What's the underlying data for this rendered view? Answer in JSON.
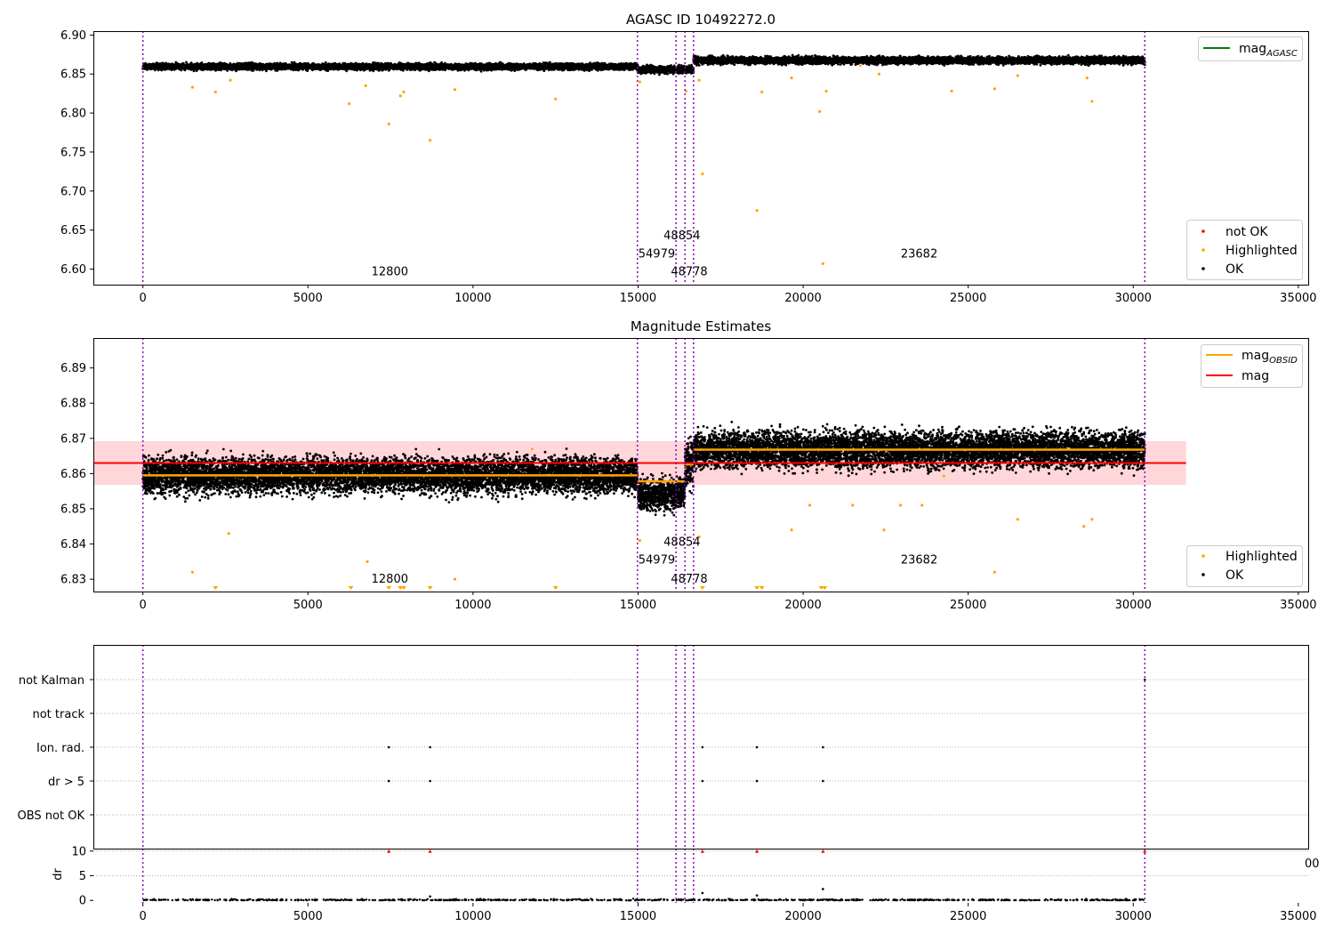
{
  "chart_data": [
    {
      "type": "scatter",
      "title": "AGASC ID 10492272.0",
      "xlabel": "",
      "ylabel": "",
      "xlim": [
        -1500,
        35300
      ],
      "ylim": [
        6.58,
        6.905
      ],
      "xticks": [
        0,
        5000,
        10000,
        15000,
        20000,
        25000,
        30000,
        35000
      ],
      "yticks": [
        6.6,
        6.65,
        6.7,
        6.75,
        6.8,
        6.85,
        6.9
      ],
      "ytick_labels": [
        "6.60",
        "6.65",
        "6.70",
        "6.75",
        "6.80",
        "6.85",
        "6.90"
      ],
      "obsid_boundaries": [
        0,
        14980,
        16150,
        16420,
        16680,
        30350
      ],
      "obsid_labels": [
        {
          "text": "12800",
          "x": 7480,
          "y": 6.592
        },
        {
          "text": "54979",
          "x": 15565,
          "y": 6.615
        },
        {
          "text": "48854",
          "x": 16330,
          "y": 6.638
        },
        {
          "text": "48778",
          "x": 16550,
          "y": 6.592
        },
        {
          "text": "23682",
          "x": 23515,
          "y": 6.615
        }
      ],
      "segments": [
        {
          "x0": 0,
          "x1": 14980,
          "center": 6.8595,
          "spread": 0.0035
        },
        {
          "x0": 14980,
          "x1": 16680,
          "center": 6.8555,
          "spread": 0.004
        },
        {
          "x0": 16680,
          "x1": 30350,
          "center": 6.8675,
          "spread": 0.004
        }
      ],
      "highlighted_outliers": [
        [
          1500,
          6.833
        ],
        [
          2200,
          6.827
        ],
        [
          2650,
          6.842
        ],
        [
          6250,
          6.812
        ],
        [
          6750,
          6.835
        ],
        [
          7450,
          6.786
        ],
        [
          7800,
          6.822
        ],
        [
          7900,
          6.827
        ],
        [
          8700,
          6.765
        ],
        [
          9450,
          6.83
        ],
        [
          12500,
          6.818
        ],
        [
          15050,
          6.84
        ],
        [
          16450,
          6.828
        ],
        [
          16850,
          6.842
        ],
        [
          16950,
          6.722
        ],
        [
          18600,
          6.675
        ],
        [
          18750,
          6.827
        ],
        [
          19650,
          6.845
        ],
        [
          20500,
          6.802
        ],
        [
          20600,
          6.607
        ],
        [
          20700,
          6.828
        ],
        [
          22300,
          6.85
        ],
        [
          24500,
          6.828
        ],
        [
          25800,
          6.831
        ],
        [
          26500,
          6.848
        ],
        [
          28600,
          6.845
        ],
        [
          28750,
          6.815
        ]
      ],
      "legend_lines": [
        {
          "label": "mag",
          "sub": "AGASC",
          "color": "#008000"
        }
      ],
      "legend_markers": [
        {
          "label": "not OK",
          "color": "#ff0000"
        },
        {
          "label": "Highlighted",
          "color": "#ffa500"
        },
        {
          "label": "OK",
          "color": "#000000"
        }
      ]
    },
    {
      "type": "scatter",
      "title": "Magnitude Estimates",
      "xlabel": "",
      "ylabel": "",
      "xlim": [
        -1500,
        35300
      ],
      "ylim": [
        6.8265,
        6.8985
      ],
      "xticks": [
        0,
        5000,
        10000,
        15000,
        20000,
        25000,
        30000,
        35000
      ],
      "yticks": [
        6.83,
        6.84,
        6.85,
        6.86,
        6.87,
        6.88,
        6.89
      ],
      "ytick_labels": [
        "6.83",
        "6.84",
        "6.85",
        "6.86",
        "6.87",
        "6.88",
        "6.89"
      ],
      "mean_mag": 6.863,
      "mean_band": [
        6.8568,
        6.8692
      ],
      "mean_x_range": [
        -1500,
        31600
      ],
      "obsid_mean": [
        {
          "x0": 0,
          "x1": 14980,
          "mag": 6.8595
        },
        {
          "x0": 14980,
          "x1": 16420,
          "mag": 6.8578
        },
        {
          "x0": 16420,
          "x1": 16680,
          "mag": 6.8626
        },
        {
          "x0": 16680,
          "x1": 30350,
          "mag": 6.8668
        }
      ],
      "segments": [
        {
          "x0": 0,
          "x1": 14980,
          "center": 6.8595,
          "spread": 0.0045
        },
        {
          "x0": 14980,
          "x1": 16420,
          "center": 6.854,
          "spread": 0.004
        },
        {
          "x0": 16420,
          "x1": 16680,
          "center": 6.8625,
          "spread": 0.006
        },
        {
          "x0": 16680,
          "x1": 30350,
          "center": 6.8668,
          "spread": 0.0045
        }
      ],
      "highlighted_outliers": [
        [
          1500,
          6.832
        ],
        [
          2600,
          6.843
        ],
        [
          6800,
          6.835
        ],
        [
          9450,
          6.83
        ],
        [
          15050,
          6.841
        ],
        [
          16850,
          6.842
        ],
        [
          19650,
          6.844
        ],
        [
          20200,
          6.851
        ],
        [
          21500,
          6.851
        ],
        [
          22450,
          6.844
        ],
        [
          22950,
          6.851
        ],
        [
          23600,
          6.851
        ],
        [
          25800,
          6.832
        ],
        [
          26500,
          6.847
        ],
        [
          28500,
          6.845
        ],
        [
          28750,
          6.847
        ]
      ],
      "below_axis_markers": [
        2200,
        6300,
        7450,
        7800,
        7900,
        8700,
        12500,
        16950,
        18600,
        18750,
        20550,
        20650
      ],
      "obsid_labels": [
        {
          "text": "12800",
          "x": 7480,
          "y": 6.829
        },
        {
          "text": "54979",
          "x": 15565,
          "y": 6.8345
        },
        {
          "text": "48854",
          "x": 16330,
          "y": 6.8395
        },
        {
          "text": "48778",
          "x": 16550,
          "y": 6.829
        },
        {
          "text": "23682",
          "x": 23515,
          "y": 6.8345
        }
      ],
      "legend_lines": [
        {
          "label": "mag",
          "sub": "OBSID",
          "color": "#ffa500"
        },
        {
          "label": "mag",
          "sub": "",
          "color": "#ff0000"
        }
      ],
      "legend_markers": [
        {
          "label": "Highlighted",
          "color": "#ffa500"
        },
        {
          "label": "OK",
          "color": "#000000"
        }
      ]
    },
    {
      "type": "scatter",
      "title": "",
      "xlabel": "",
      "ylabel": "",
      "xlim": [
        -1500,
        35300
      ],
      "categories": [
        "not Kalman",
        "not track",
        "Ion. rad.",
        "dr > 5",
        "OBS not OK"
      ],
      "flags": {
        "not Kalman": [
          30350
        ],
        "not track": [],
        "Ion. rad.": [
          7450,
          8700,
          16950,
          18600,
          20600
        ],
        "dr > 5": [
          7450,
          8700,
          16950,
          18600,
          20600
        ],
        "OBS not OK": []
      }
    },
    {
      "type": "scatter",
      "title": "",
      "xlabel": "",
      "ylabel": "dr",
      "xlim": [
        -1500,
        35300
      ],
      "ylim": [
        -0.5,
        10.5
      ],
      "yticks": [
        0,
        5,
        10
      ],
      "xticks": [
        0,
        5000,
        10000,
        15000,
        20000,
        25000,
        30000,
        35000
      ],
      "clipped_markers": [
        7450,
        8700,
        16950,
        18600,
        20600,
        30350
      ],
      "notable_points": [
        [
          16950,
          1.5
        ],
        [
          18600,
          1.0
        ],
        [
          20600,
          2.3
        ],
        [
          8700,
          0.8
        ]
      ],
      "corner_text": "00"
    }
  ],
  "colors": {
    "ok": "#000000",
    "highlighted": "#ffa500",
    "not_ok": "#ff0000",
    "agasc": "#008000",
    "boundary": "#8b00b5",
    "band": "#ffd6d9"
  }
}
